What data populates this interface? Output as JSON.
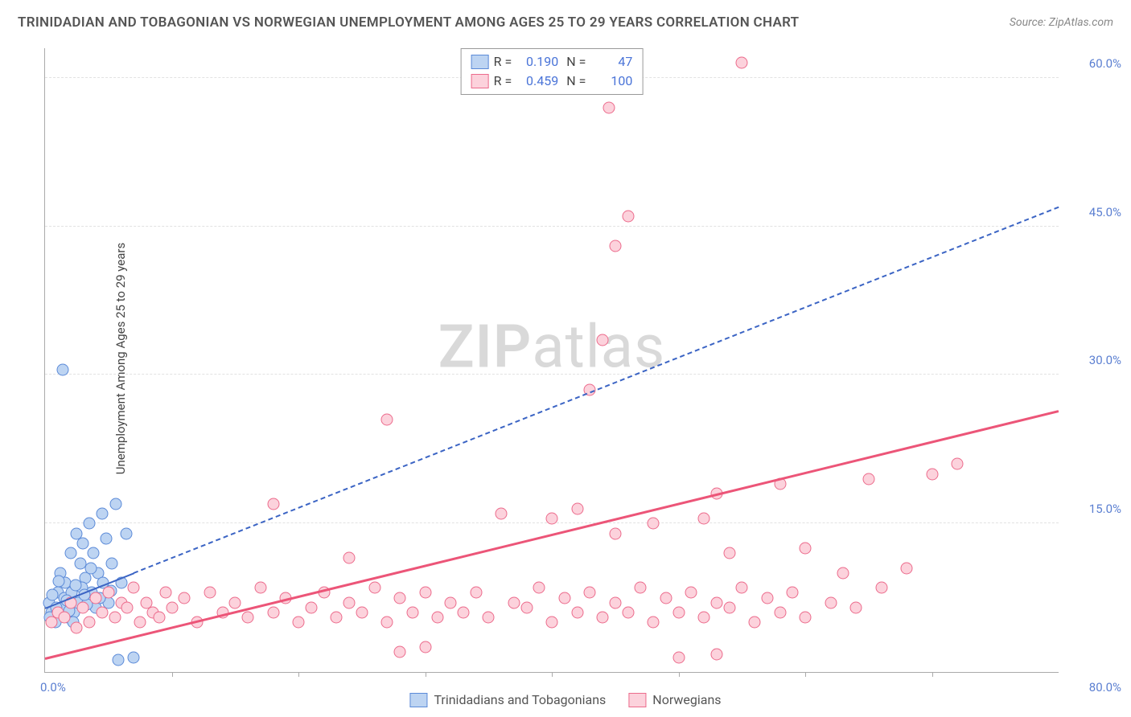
{
  "title": "TRINIDADIAN AND TOBAGONIAN VS NORWEGIAN UNEMPLOYMENT AMONG AGES 25 TO 29 YEARS CORRELATION CHART",
  "source": "Source: ZipAtlas.com",
  "ylabel": "Unemployment Among Ages 25 to 29 years",
  "watermark_a": "ZIP",
  "watermark_b": "atlas",
  "chart": {
    "type": "scatter",
    "xlim": [
      0,
      80
    ],
    "ylim": [
      0,
      63
    ],
    "yticks": [
      {
        "v": 15,
        "label": "15.0%"
      },
      {
        "v": 30,
        "label": "30.0%"
      },
      {
        "v": 45,
        "label": "45.0%"
      },
      {
        "v": 60,
        "label": "60.0%"
      }
    ],
    "xtick_marks": [
      10,
      20,
      30,
      40,
      50,
      60,
      70
    ],
    "x_origin_label": "0.0%",
    "x_max_label": "80.0%",
    "background_color": "#ffffff",
    "grid_color": "#e2e2e2",
    "marker_size": 15
  },
  "series": [
    {
      "key": "tt",
      "label": "Trinidadians and Tobagonians",
      "fill": "#bdd4f2",
      "stroke": "#5b8ad8",
      "R": "0.190",
      "N": "47",
      "trend": {
        "x1": 0,
        "y1": 6.5,
        "x2": 80,
        "y2": 47,
        "dash": true,
        "solid_until_x": 7,
        "color": "#3b64c4",
        "width": 2
      },
      "points": [
        [
          0.3,
          7
        ],
        [
          0.5,
          6
        ],
        [
          0.8,
          5
        ],
        [
          1.0,
          8
        ],
        [
          1.2,
          10
        ],
        [
          1.3,
          6.5
        ],
        [
          1.5,
          7.5
        ],
        [
          1.6,
          9
        ],
        [
          1.8,
          5.5
        ],
        [
          2.0,
          12
        ],
        [
          2.1,
          8
        ],
        [
          2.3,
          6
        ],
        [
          2.5,
          14
        ],
        [
          2.6,
          7
        ],
        [
          2.8,
          11
        ],
        [
          3.0,
          13
        ],
        [
          3.2,
          9.5
        ],
        [
          3.5,
          15
        ],
        [
          3.7,
          8
        ],
        [
          3.8,
          12
        ],
        [
          4.0,
          6.5
        ],
        [
          4.2,
          10
        ],
        [
          4.5,
          16
        ],
        [
          4.8,
          13.5
        ],
        [
          5.0,
          7
        ],
        [
          5.3,
          11
        ],
        [
          5.6,
          17
        ],
        [
          6.0,
          9
        ],
        [
          6.4,
          14
        ],
        [
          1.4,
          30.5
        ],
        [
          2.2,
          5
        ],
        [
          0.9,
          6.5
        ],
        [
          1.7,
          7.2
        ],
        [
          2.9,
          8.5
        ],
        [
          3.3,
          6.8
        ],
        [
          4.6,
          9
        ],
        [
          5.8,
          1.2
        ],
        [
          7.0,
          1.5
        ],
        [
          0.6,
          7.8
        ],
        [
          1.1,
          9.2
        ],
        [
          2.4,
          8.8
        ],
        [
          3.6,
          10.5
        ],
        [
          4.3,
          7.5
        ],
        [
          5.2,
          8.2
        ],
        [
          0.4,
          5.5
        ],
        [
          1.9,
          6.2
        ],
        [
          3.1,
          7.8
        ]
      ]
    },
    {
      "key": "no",
      "label": "Norwegians",
      "fill": "#fcd2dc",
      "stroke": "#ec6b8c",
      "R": "0.459",
      "N": "100",
      "trend": {
        "x1": 0,
        "y1": 1.5,
        "x2": 80,
        "y2": 26.5,
        "dash": false,
        "color": "#ec5578",
        "width": 3
      },
      "points": [
        [
          0.5,
          5
        ],
        [
          1,
          6
        ],
        [
          1.5,
          5.5
        ],
        [
          2,
          7
        ],
        [
          2.5,
          4.5
        ],
        [
          3,
          6.5
        ],
        [
          3.5,
          5
        ],
        [
          4,
          7.5
        ],
        [
          4.5,
          6
        ],
        [
          5,
          8
        ],
        [
          5.5,
          5.5
        ],
        [
          6,
          7
        ],
        [
          6.5,
          6.5
        ],
        [
          7,
          8.5
        ],
        [
          7.5,
          5
        ],
        [
          8,
          7
        ],
        [
          8.5,
          6
        ],
        [
          9,
          5.5
        ],
        [
          9.5,
          8
        ],
        [
          10,
          6.5
        ],
        [
          11,
          7.5
        ],
        [
          12,
          5
        ],
        [
          13,
          8
        ],
        [
          14,
          6
        ],
        [
          15,
          7
        ],
        [
          16,
          5.5
        ],
        [
          17,
          8.5
        ],
        [
          18,
          6
        ],
        [
          19,
          7.5
        ],
        [
          20,
          5
        ],
        [
          21,
          6.5
        ],
        [
          22,
          8
        ],
        [
          23,
          5.5
        ],
        [
          24,
          7
        ],
        [
          25,
          6
        ],
        [
          26,
          8.5
        ],
        [
          27,
          5
        ],
        [
          28,
          7.5
        ],
        [
          29,
          6
        ],
        [
          30,
          8
        ],
        [
          18,
          17
        ],
        [
          24,
          11.5
        ],
        [
          27,
          25.5
        ],
        [
          28,
          2
        ],
        [
          30,
          2.5
        ],
        [
          31,
          5.5
        ],
        [
          32,
          7
        ],
        [
          33,
          6
        ],
        [
          34,
          8
        ],
        [
          35,
          5.5
        ],
        [
          36,
          16
        ],
        [
          37,
          7
        ],
        [
          38,
          6.5
        ],
        [
          39,
          8.5
        ],
        [
          40,
          5
        ],
        [
          40,
          15.5
        ],
        [
          41,
          7.5
        ],
        [
          42,
          6
        ],
        [
          42,
          16.5
        ],
        [
          43,
          8
        ],
        [
          43,
          28.5
        ],
        [
          44,
          5.5
        ],
        [
          44,
          33.5
        ],
        [
          44.5,
          57
        ],
        [
          45,
          7
        ],
        [
          45,
          14
        ],
        [
          45,
          43
        ],
        [
          46,
          6
        ],
        [
          46,
          46
        ],
        [
          47,
          8.5
        ],
        [
          48,
          5
        ],
        [
          48,
          15
        ],
        [
          49,
          7.5
        ],
        [
          50,
          6
        ],
        [
          50,
          1.5
        ],
        [
          51,
          8
        ],
        [
          52,
          5.5
        ],
        [
          52,
          15.5
        ],
        [
          53,
          7
        ],
        [
          53,
          18
        ],
        [
          54,
          6.5
        ],
        [
          54,
          12
        ],
        [
          55,
          8.5
        ],
        [
          55,
          61.5
        ],
        [
          56,
          5
        ],
        [
          57,
          7.5
        ],
        [
          58,
          6
        ],
        [
          58,
          19
        ],
        [
          59,
          8
        ],
        [
          60,
          5.5
        ],
        [
          60,
          12.5
        ],
        [
          62,
          7
        ],
        [
          63,
          10
        ],
        [
          64,
          6.5
        ],
        [
          65,
          19.5
        ],
        [
          66,
          8.5
        ],
        [
          68,
          10.5
        ],
        [
          70,
          20
        ],
        [
          72,
          21
        ],
        [
          53,
          1.8
        ]
      ]
    }
  ]
}
